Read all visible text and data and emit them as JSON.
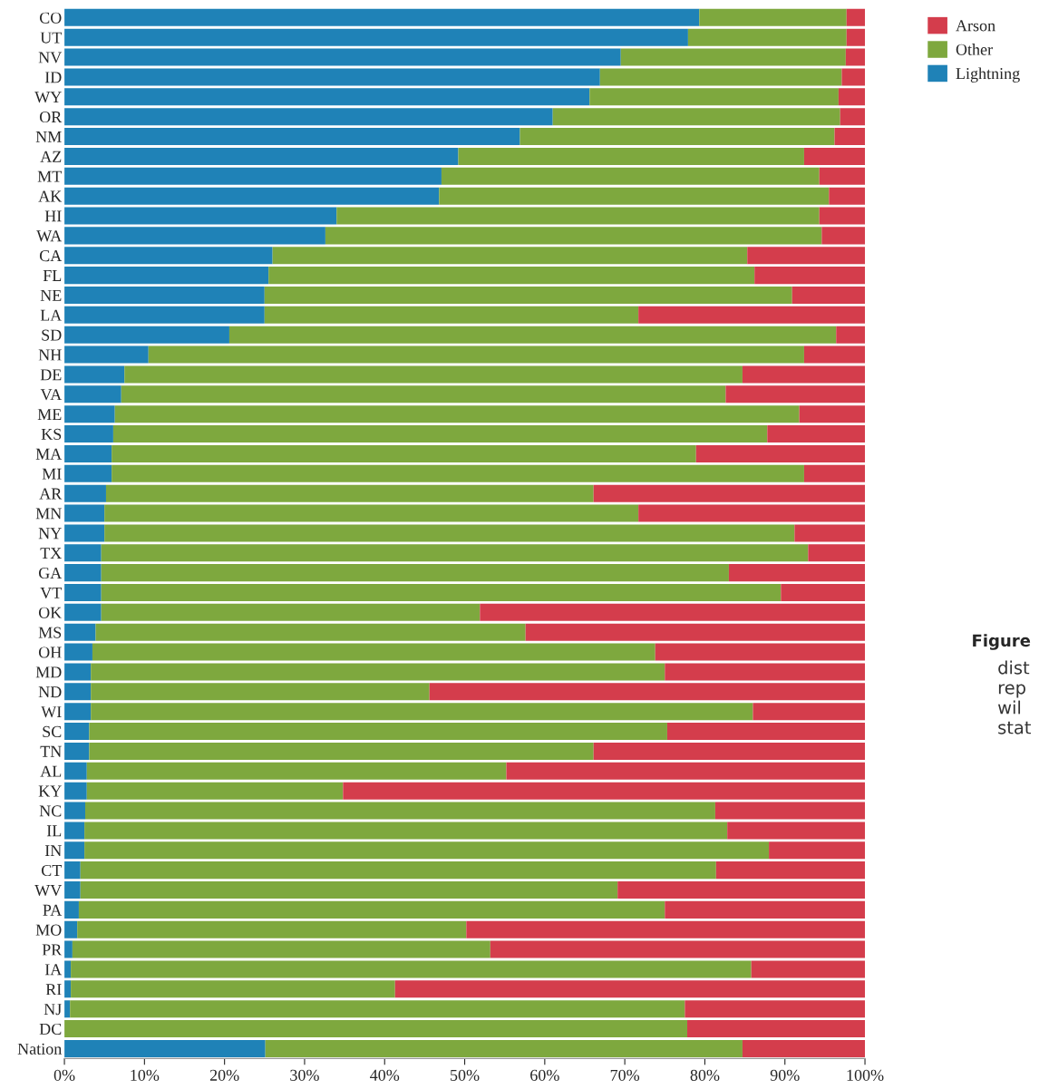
{
  "chart_data": {
    "type": "bar",
    "orientation": "horizontal",
    "stacked": true,
    "categories": [
      "CO",
      "UT",
      "NV",
      "ID",
      "WY",
      "OR",
      "NM",
      "AZ",
      "MT",
      "AK",
      "HI",
      "WA",
      "CA",
      "FL",
      "NE",
      "LA",
      "SD",
      "NH",
      "DE",
      "VA",
      "ME",
      "KS",
      "MA",
      "MI",
      "AR",
      "MN",
      "NY",
      "TX",
      "GA",
      "VT",
      "OK",
      "MS",
      "OH",
      "MD",
      "ND",
      "WI",
      "SC",
      "TN",
      "AL",
      "KY",
      "NC",
      "IL",
      "IN",
      "CT",
      "WV",
      "PA",
      "MO",
      "PR",
      "IA",
      "RI",
      "NJ",
      "DC",
      "Nation"
    ],
    "series": [
      {
        "name": "Lightning",
        "color": "#1f82b7",
        "values": [
          79.3,
          77.9,
          69.5,
          66.9,
          65.6,
          61.0,
          56.9,
          49.2,
          47.1,
          46.8,
          34.0,
          32.6,
          26.0,
          25.5,
          25.0,
          25.0,
          20.6,
          10.5,
          7.5,
          7.1,
          6.3,
          6.1,
          5.9,
          5.9,
          5.2,
          5.0,
          5.0,
          4.6,
          4.6,
          4.6,
          4.6,
          3.9,
          3.5,
          3.3,
          3.3,
          3.3,
          3.1,
          3.1,
          2.8,
          2.8,
          2.6,
          2.5,
          2.5,
          2.0,
          2.0,
          1.8,
          1.6,
          1.0,
          0.8,
          0.8,
          0.7,
          0.0,
          25.1
        ]
      },
      {
        "name": "Other",
        "color": "#7ea83e",
        "values": [
          18.4,
          19.8,
          28.1,
          30.2,
          31.1,
          35.9,
          39.3,
          43.2,
          47.2,
          48.7,
          60.3,
          62.0,
          59.3,
          60.7,
          65.9,
          46.7,
          75.8,
          81.9,
          77.2,
          75.5,
          85.5,
          81.7,
          73.0,
          86.5,
          60.9,
          66.7,
          86.2,
          88.3,
          78.4,
          84.9,
          47.3,
          53.7,
          70.3,
          71.7,
          42.3,
          82.7,
          72.2,
          63.0,
          52.4,
          32.0,
          78.7,
          80.3,
          85.5,
          79.4,
          67.1,
          73.2,
          48.6,
          52.2,
          85.0,
          40.5,
          76.8,
          77.8,
          59.6
        ]
      },
      {
        "name": "Arson",
        "color": "#d43d4c",
        "values": [
          2.3,
          2.3,
          2.4,
          2.9,
          3.3,
          3.1,
          3.8,
          7.6,
          5.7,
          4.5,
          5.7,
          5.4,
          14.7,
          13.8,
          9.1,
          28.3,
          3.6,
          7.6,
          15.3,
          17.4,
          8.2,
          12.2,
          21.1,
          7.6,
          33.9,
          28.3,
          8.8,
          7.1,
          17.0,
          10.5,
          48.1,
          42.4,
          26.2,
          25.0,
          54.4,
          14.0,
          24.7,
          33.9,
          44.8,
          65.2,
          18.7,
          17.2,
          12.0,
          18.6,
          30.9,
          25.0,
          49.8,
          46.8,
          14.2,
          58.7,
          22.5,
          22.2,
          15.3
        ]
      }
    ],
    "xlim": [
      0,
      100
    ],
    "xticks": [
      {
        "value": 0,
        "label": "0%"
      },
      {
        "value": 10,
        "label": "10%"
      },
      {
        "value": 20,
        "label": "20%"
      },
      {
        "value": 30,
        "label": "30%"
      },
      {
        "value": 40,
        "label": "40%"
      },
      {
        "value": 50,
        "label": "50%"
      },
      {
        "value": 60,
        "label": "60%"
      },
      {
        "value": 70,
        "label": "70%"
      },
      {
        "value": 80,
        "label": "80%"
      },
      {
        "value": 90,
        "label": "90%"
      },
      {
        "value": 100,
        "label": "100%"
      }
    ],
    "legend": "top right",
    "grid": false,
    "annotations": [
      "Figure",
      "dist",
      "rep",
      "wil",
      "stat"
    ]
  }
}
